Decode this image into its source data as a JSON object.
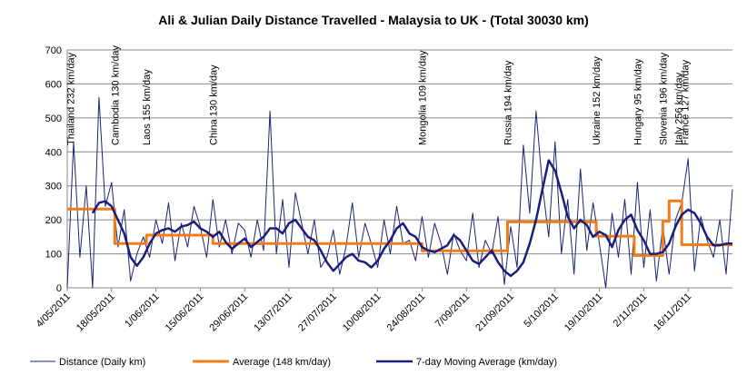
{
  "chart_data": {
    "type": "line",
    "title": "Ali & Julian Daily Distance Travelled - Malaysia to UK - (Total 30030 km)",
    "xlabel": "",
    "ylabel": "",
    "ylim": [
      0,
      700
    ],
    "yticks": [
      0,
      100,
      200,
      300,
      400,
      500,
      600,
      700
    ],
    "xlim": [
      "2011-05-04",
      "2011-11-30"
    ],
    "xtick_labels": [
      "4/05/2011",
      "18/05/2011",
      "1/06/2011",
      "15/06/2011",
      "29/06/2011",
      "13/07/2011",
      "27/07/2011",
      "10/08/2011",
      "24/08/2011",
      "7/09/2011",
      "21/09/2011",
      "5/10/2011",
      "19/10/2011",
      "2/11/2011",
      "16/11/2011"
    ],
    "xtick_dates": [
      "2011-05-04",
      "2011-05-18",
      "2011-06-01",
      "2011-06-15",
      "2011-06-29",
      "2011-07-13",
      "2011-07-27",
      "2011-08-10",
      "2011-08-24",
      "2011-09-07",
      "2011-09-21",
      "2011-10-05",
      "2011-10-19",
      "2011-11-02",
      "2011-11-16"
    ],
    "grid": "horizontal",
    "legend_position": "bottom",
    "colors": {
      "daily": "#1a2472",
      "average": "#f07d1a",
      "moving": "#1b1f7c",
      "grid": "#888888"
    },
    "series": [
      {
        "name": "Distance (Daily km)",
        "x": [
          "2011-05-04",
          "2011-05-06",
          "2011-05-08",
          "2011-05-10",
          "2011-05-12",
          "2011-05-14",
          "2011-05-16",
          "2011-05-18",
          "2011-05-20",
          "2011-05-22",
          "2011-05-24",
          "2011-05-26",
          "2011-05-28",
          "2011-05-30",
          "2011-06-01",
          "2011-06-03",
          "2011-06-05",
          "2011-06-07",
          "2011-06-09",
          "2011-06-11",
          "2011-06-13",
          "2011-06-15",
          "2011-06-17",
          "2011-06-19",
          "2011-06-21",
          "2011-06-23",
          "2011-06-25",
          "2011-06-27",
          "2011-06-29",
          "2011-07-01",
          "2011-07-03",
          "2011-07-05",
          "2011-07-07",
          "2011-07-09",
          "2011-07-11",
          "2011-07-13",
          "2011-07-15",
          "2011-07-17",
          "2011-07-19",
          "2011-07-21",
          "2011-07-23",
          "2011-07-25",
          "2011-07-27",
          "2011-07-29",
          "2011-07-31",
          "2011-08-02",
          "2011-08-04",
          "2011-08-06",
          "2011-08-08",
          "2011-08-10",
          "2011-08-12",
          "2011-08-14",
          "2011-08-16",
          "2011-08-18",
          "2011-08-20",
          "2011-08-22",
          "2011-08-24",
          "2011-08-26",
          "2011-08-28",
          "2011-08-30",
          "2011-09-01",
          "2011-09-03",
          "2011-09-05",
          "2011-09-07",
          "2011-09-09",
          "2011-09-11",
          "2011-09-13",
          "2011-09-15",
          "2011-09-17",
          "2011-09-19",
          "2011-09-21",
          "2011-09-23",
          "2011-09-25",
          "2011-09-27",
          "2011-09-29",
          "2011-10-01",
          "2011-10-03",
          "2011-10-05",
          "2011-10-07",
          "2011-10-09",
          "2011-10-11",
          "2011-10-13",
          "2011-10-15",
          "2011-10-17",
          "2011-10-19",
          "2011-10-21",
          "2011-10-23",
          "2011-10-25",
          "2011-10-27",
          "2011-10-29",
          "2011-10-31",
          "2011-11-02",
          "2011-11-04",
          "2011-11-06",
          "2011-11-08",
          "2011-11-10",
          "2011-11-12",
          "2011-11-14",
          "2011-11-16",
          "2011-11-18",
          "2011-11-20",
          "2011-11-22",
          "2011-11-24",
          "2011-11-26",
          "2011-11-28",
          "2011-11-30"
        ],
        "values": [
          0,
          430,
          90,
          300,
          0,
          560,
          240,
          310,
          120,
          230,
          20,
          100,
          150,
          90,
          200,
          130,
          250,
          80,
          190,
          120,
          240,
          180,
          90,
          260,
          120,
          200,
          100,
          190,
          170,
          90,
          200,
          110,
          520,
          100,
          260,
          60,
          280,
          190,
          100,
          200,
          60,
          90,
          170,
          40,
          120,
          250,
          90,
          190,
          130,
          60,
          200,
          100,
          240,
          130,
          140,
          80,
          210,
          90,
          190,
          130,
          40,
          160,
          110,
          80,
          220,
          60,
          140,
          100,
          210,
          10,
          180,
          60,
          420,
          220,
          520,
          300,
          150,
          430,
          100,
          260,
          40,
          350,
          110,
          250,
          130,
          0,
          220,
          90,
          260,
          40,
          310,
          60,
          230,
          20,
          180,
          40,
          200,
          250,
          380,
          50,
          210,
          140,
          90,
          200,
          40,
          290
        ]
      },
      {
        "name": "Average (148 km/day)",
        "x": [
          "2011-05-04",
          "2011-05-19",
          "2011-05-19",
          "2011-05-29",
          "2011-05-29",
          "2011-06-19",
          "2011-06-19",
          "2011-08-24",
          "2011-08-24",
          "2011-09-20",
          "2011-09-20",
          "2011-10-18",
          "2011-10-18",
          "2011-10-30",
          "2011-10-30",
          "2011-11-08",
          "2011-11-08",
          "2011-11-10",
          "2011-11-10",
          "2011-11-14",
          "2011-11-14",
          "2011-11-30"
        ],
        "values": [
          232,
          232,
          130,
          130,
          155,
          155,
          130,
          130,
          109,
          109,
          194,
          194,
          152,
          152,
          95,
          95,
          196,
          196,
          256,
          256,
          127,
          127
        ]
      },
      {
        "name": "7-day Moving Average (km/day)",
        "x": [
          "2011-05-12",
          "2011-05-14",
          "2011-05-16",
          "2011-05-18",
          "2011-05-20",
          "2011-05-22",
          "2011-05-24",
          "2011-05-26",
          "2011-05-28",
          "2011-05-30",
          "2011-06-01",
          "2011-06-03",
          "2011-06-05",
          "2011-06-07",
          "2011-06-09",
          "2011-06-11",
          "2011-06-13",
          "2011-06-15",
          "2011-06-17",
          "2011-06-19",
          "2011-06-21",
          "2011-06-23",
          "2011-06-25",
          "2011-06-27",
          "2011-06-29",
          "2011-07-01",
          "2011-07-03",
          "2011-07-05",
          "2011-07-07",
          "2011-07-09",
          "2011-07-11",
          "2011-07-13",
          "2011-07-15",
          "2011-07-17",
          "2011-07-19",
          "2011-07-21",
          "2011-07-23",
          "2011-07-25",
          "2011-07-27",
          "2011-07-29",
          "2011-07-31",
          "2011-08-02",
          "2011-08-04",
          "2011-08-06",
          "2011-08-08",
          "2011-08-10",
          "2011-08-12",
          "2011-08-14",
          "2011-08-16",
          "2011-08-18",
          "2011-08-20",
          "2011-08-22",
          "2011-08-24",
          "2011-08-26",
          "2011-08-28",
          "2011-08-30",
          "2011-09-01",
          "2011-09-03",
          "2011-09-05",
          "2011-09-07",
          "2011-09-09",
          "2011-09-11",
          "2011-09-13",
          "2011-09-15",
          "2011-09-17",
          "2011-09-19",
          "2011-09-21",
          "2011-09-23",
          "2011-09-25",
          "2011-09-27",
          "2011-09-29",
          "2011-10-01",
          "2011-10-03",
          "2011-10-05",
          "2011-10-07",
          "2011-10-09",
          "2011-10-11",
          "2011-10-13",
          "2011-10-15",
          "2011-10-17",
          "2011-10-19",
          "2011-10-21",
          "2011-10-23",
          "2011-10-25",
          "2011-10-27",
          "2011-10-29",
          "2011-10-31",
          "2011-11-02",
          "2011-11-04",
          "2011-11-06",
          "2011-11-08",
          "2011-11-10",
          "2011-11-12",
          "2011-11-14",
          "2011-11-16",
          "2011-11-18",
          "2011-11-20",
          "2011-11-22",
          "2011-11-24",
          "2011-11-26",
          "2011-11-28",
          "2011-11-30"
        ],
        "values": [
          220,
          250,
          255,
          240,
          200,
          160,
          90,
          65,
          90,
          130,
          160,
          170,
          175,
          165,
          180,
          185,
          195,
          175,
          165,
          150,
          165,
          135,
          115,
          130,
          145,
          120,
          135,
          150,
          175,
          175,
          160,
          190,
          200,
          175,
          150,
          140,
          110,
          75,
          50,
          70,
          90,
          100,
          80,
          75,
          60,
          80,
          115,
          140,
          175,
          190,
          160,
          150,
          120,
          110,
          105,
          115,
          125,
          155,
          140,
          110,
          80,
          70,
          90,
          110,
          75,
          50,
          35,
          50,
          75,
          130,
          200,
          290,
          375,
          345,
          280,
          210,
          175,
          200,
          185,
          150,
          165,
          155,
          120,
          170,
          200,
          215,
          170,
          140,
          100,
          100,
          105,
          130,
          180,
          215,
          230,
          220,
          190,
          150,
          125,
          125,
          130,
          130
        ]
      }
    ],
    "annotations": [
      {
        "date": "2011-05-05",
        "label": "Thailand 232 km/day"
      },
      {
        "date": "2011-05-19",
        "label": "Cambodia 130 km/day"
      },
      {
        "date": "2011-05-29",
        "label": "Laos 155 km/day"
      },
      {
        "date": "2011-06-19",
        "label": "China 130 km/day"
      },
      {
        "date": "2011-08-24",
        "label": "Mongolia 109 km/day"
      },
      {
        "date": "2011-09-20",
        "label": "Russia 194 km/day"
      },
      {
        "date": "2011-10-18",
        "label": "Ukraine 152 km/day"
      },
      {
        "date": "2011-10-31",
        "label": "Hungary 95 km/day"
      },
      {
        "date": "2011-11-08",
        "label": "Slovenia 196 km/day"
      },
      {
        "date": "2011-11-13",
        "label": "Italy 256 km/day"
      },
      {
        "date": "2011-11-15",
        "label": "France 127 km/day"
      }
    ]
  }
}
